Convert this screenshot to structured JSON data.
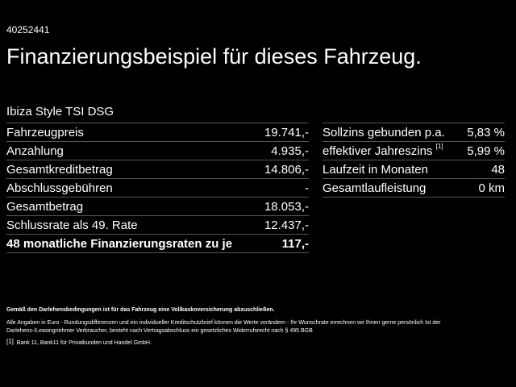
{
  "id": "40252441",
  "title": "Finanzierungsbeispiel für dieses Fahrzeug.",
  "model": "Ibiza Style TSI DSG",
  "left_table": [
    {
      "label": "Fahrzeugpreis",
      "value": "19.741,-"
    },
    {
      "label": "Anzahlung",
      "value": "4.935,-"
    },
    {
      "label": "Gesamtkreditbetrag",
      "value": "14.806,-"
    },
    {
      "label": "Abschlussgebühren",
      "value": "-"
    },
    {
      "label": "Gesamtbetrag",
      "value": "18.053,-"
    },
    {
      "label": "Schlussrate als 49. Rate",
      "value": "12.437,-"
    },
    {
      "label": "48 monatliche Finanzierungsraten zu je",
      "value": "117,-"
    }
  ],
  "right_table": [
    {
      "label": "Sollzins gebunden p.a.",
      "sup": "",
      "value": "5,83 %"
    },
    {
      "label": "effektiver Jahreszins",
      "sup": "[1]",
      "value": "5,99 %"
    },
    {
      "label": "Laufzeit in Monaten",
      "sup": "",
      "value": "48"
    },
    {
      "label": "Gesamtlaufleistung",
      "sup": "",
      "value": "0 km"
    }
  ],
  "fine_print": {
    "bold": "Gemäß den Darlehensbedingungen ist für das Fahrzeug eine Vollkaskoversicherung abzuschließen.",
    "paragraph": "Alle Angaben in Euro - Rundungsdifferenzen und ein individueller Kreditschutzbrief können die Werte verändern - Ihr Wunschrate errechnen wir Ihnen gerne persönlich Ist der Darlehens-/Leasingnehmer Verbraucher, besteht nach Vertragsabschluss ein gesetzliches Widerrufsrecht nach § 495 BGB",
    "footnote_mark": "[1]",
    "footnote": "Bank 11, Bank11 für Privatkunden und Handel GmbH."
  }
}
